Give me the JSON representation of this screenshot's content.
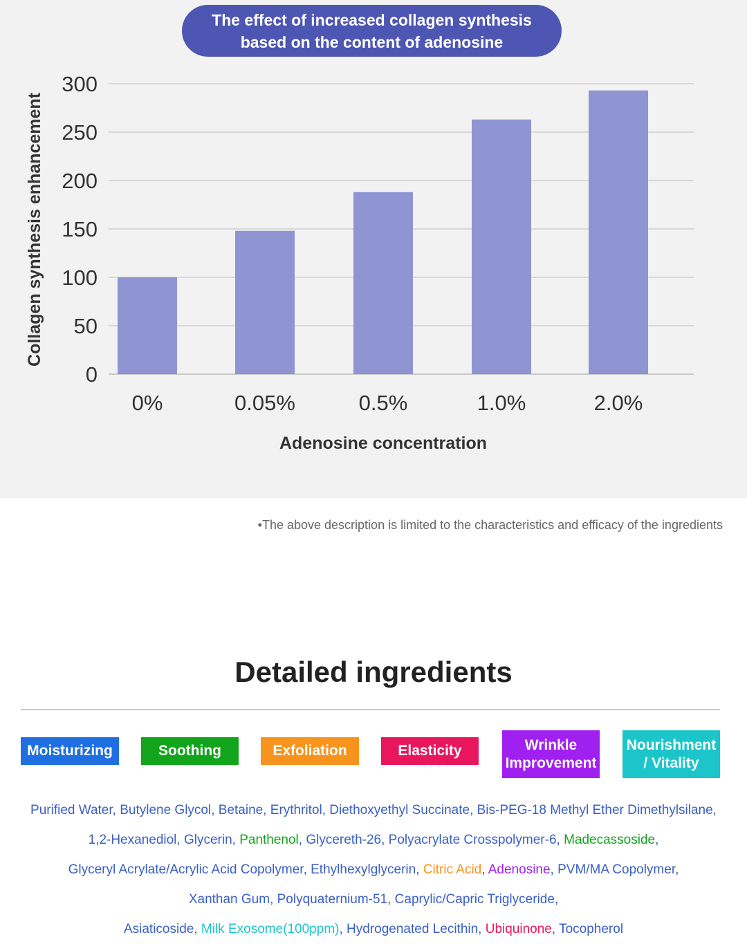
{
  "chart_data": {
    "type": "bar",
    "title_lines": [
      "The effect of increased collagen synthesis",
      "based on the content of adenosine"
    ],
    "xlabel": "Adenosine concentration",
    "ylabel": "Collagen synthesis enhancement",
    "categories": [
      "0%",
      "0.05%",
      "0.5%",
      "1.0%",
      "2.0%"
    ],
    "values": [
      100,
      148,
      188,
      263,
      293
    ],
    "ylim": [
      0,
      300
    ],
    "yticks": [
      0,
      50,
      100,
      150,
      200,
      250,
      300
    ],
    "grid": true,
    "bar_color": "#8f94d3"
  },
  "disclaimer": "•The above description is limited to the characteristics and efficacy of the ingredients",
  "ingredients_title": "Detailed ingredients",
  "badges": [
    {
      "lines": [
        "Moisturizing"
      ],
      "color": "#1f6fe0"
    },
    {
      "lines": [
        "Soothing"
      ],
      "color": "#12a41b"
    },
    {
      "lines": [
        "Exfoliation"
      ],
      "color": "#f7941d"
    },
    {
      "lines": [
        "Elasticity"
      ],
      "color": "#e8175d"
    },
    {
      "lines": [
        "Wrinkle",
        "Improvement"
      ],
      "color": "#a020f0"
    },
    {
      "lines": [
        "Nourishment",
        "/ Vitality"
      ],
      "color": "#1cc5c9"
    }
  ],
  "ingredient_lines": [
    [
      {
        "text": "Purified Water, Butylene Glycol, Betaine, Erythritol, Diethoxyethyl Succinate, Bis-PEG-18 Methyl Ether Dimethylsilane,",
        "color": "#3a5fc4"
      }
    ],
    [
      {
        "text": "1,2-Hexanediol, Glycerin, ",
        "color": "#3a5fc4"
      },
      {
        "text": "Panthenol",
        "color": "#12a41b"
      },
      {
        "text": ", Glycereth-26, Polyacrylate Crosspolymer-6, ",
        "color": "#3a5fc4"
      },
      {
        "text": "Madecassoside",
        "color": "#12a41b"
      },
      {
        "text": ",",
        "color": "#3a5fc4"
      }
    ],
    [
      {
        "text": "Glyceryl Acrylate/Acrylic Acid Copolymer, Ethylhexylglycerin, ",
        "color": "#3a5fc4"
      },
      {
        "text": "Citric Acid",
        "color": "#f7941d"
      },
      {
        "text": ", ",
        "color": "#3a5fc4"
      },
      {
        "text": "Adenosine",
        "color": "#a020f0"
      },
      {
        "text": ", PVM/MA Copolymer,",
        "color": "#3a5fc4"
      }
    ],
    [
      {
        "text": "Xanthan Gum, Polyquaternium-51, Caprylic/Capric Triglyceride,",
        "color": "#3a5fc4"
      }
    ],
    [
      {
        "text": "Asiaticoside, ",
        "color": "#3a5fc4"
      },
      {
        "text": "Milk Exosome(100ppm)",
        "color": "#1cc5c9"
      },
      {
        "text": ", Hydrogenated Lecithin, ",
        "color": "#3a5fc4"
      },
      {
        "text": "Ubiquinone",
        "color": "#e8175d"
      },
      {
        "text": ", Tocopherol",
        "color": "#3a5fc4"
      }
    ]
  ]
}
